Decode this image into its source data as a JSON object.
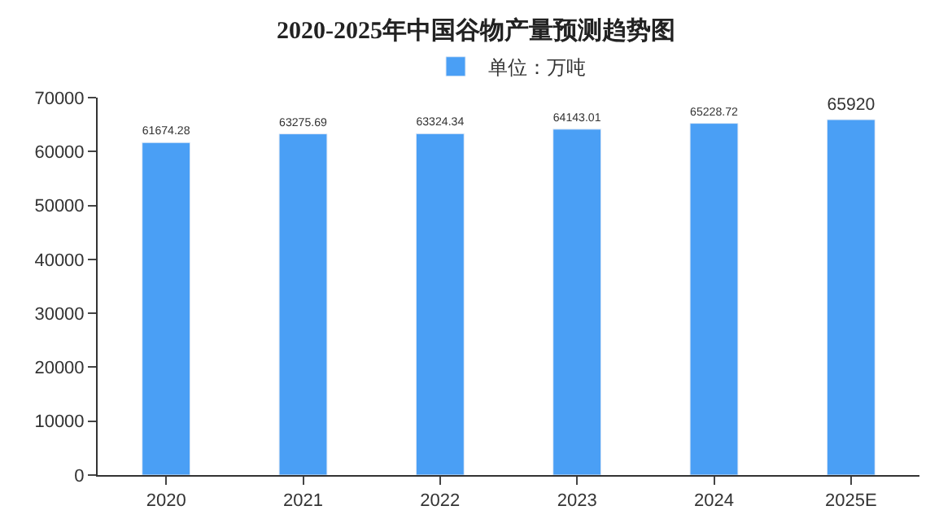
{
  "chart_data": {
    "type": "bar",
    "title": "2020-2025年中国谷物产量预测趋势图",
    "categories": [
      "2020",
      "2021",
      "2022",
      "2023",
      "2024",
      "2025E"
    ],
    "series": [
      {
        "name": "单位：万吨",
        "color": "#4a9ff5",
        "values": [
          61674.28,
          63275.69,
          63324.34,
          64143.01,
          65228.72,
          65920
        ]
      }
    ],
    "ylim": [
      0,
      70000
    ],
    "yticks": [
      0,
      10000,
      20000,
      30000,
      40000,
      50000,
      60000,
      70000
    ],
    "grid": false,
    "legend": "top",
    "data_labels": true
  }
}
